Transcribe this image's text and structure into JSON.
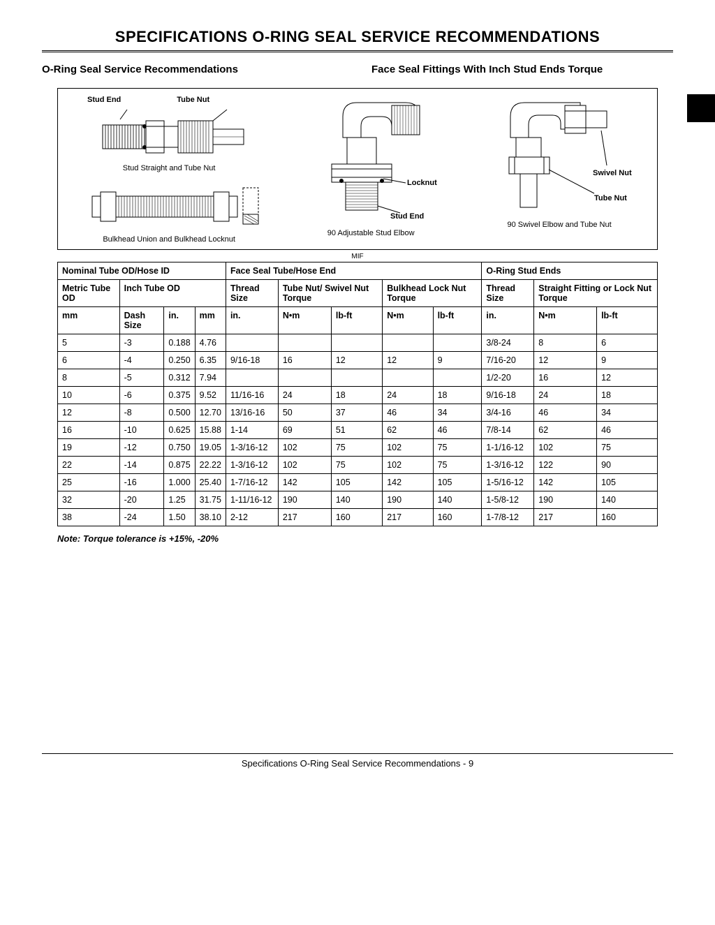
{
  "page": {
    "title": "SPECIFICATIONS   O-RING SEAL SERVICE RECOMMENDATIONS",
    "heading_left": "O-Ring Seal Service Recommendations",
    "heading_right": "Face Seal Fittings With Inch Stud Ends Torque",
    "note": "Note: Torque tolerance is +15%, -20%",
    "footer": "Specifications   O-Ring Seal Service Recommendations  - 9",
    "mif": "MIF"
  },
  "diagram": {
    "stud_end": "Stud End",
    "tube_nut": "Tube Nut",
    "locknut": "Locknut",
    "swivel_nut": "Swivel Nut",
    "caption1": "Stud Straight and Tube Nut",
    "caption2": "Bulkhead Union and Bulkhead Locknut",
    "caption3": "90 Adjustable Stud Elbow",
    "caption4": "90 Swivel Elbow and Tube Nut"
  },
  "table": {
    "group_headers": [
      "Nominal Tube OD/Hose ID",
      "Face Seal Tube/Hose End",
      "O-Ring Stud Ends"
    ],
    "sub_headers": {
      "metric": "Metric Tube OD",
      "inch": "Inch Tube OD",
      "thread": "Thread Size",
      "tubenut": "Tube Nut/ Swivel Nut Torque",
      "bulkhead": "Bulkhead Lock Nut Torque",
      "thread2": "Thread Size",
      "straight": "Straight Fitting or Lock Nut Torque"
    },
    "unit_headers": [
      "mm",
      "Dash Size",
      "in.",
      "mm",
      "in.",
      "N•m",
      "lb-ft",
      "N•m",
      "lb-ft",
      "in.",
      "N•m",
      "lb-ft"
    ],
    "rows": [
      [
        "5",
        "-3",
        "0.188",
        "4.76",
        "",
        "",
        "",
        "",
        "",
        "3/8-24",
        "8",
        "6"
      ],
      [
        "6",
        "-4",
        "0.250",
        "6.35",
        "9/16-18",
        "16",
        "12",
        "12",
        "9",
        "7/16-20",
        "12",
        "9"
      ],
      [
        "8",
        "-5",
        "0.312",
        "7.94",
        "",
        "",
        "",
        "",
        "",
        "1/2-20",
        "16",
        "12"
      ],
      [
        "10",
        "-6",
        "0.375",
        "9.52",
        "11/16-16",
        "24",
        "18",
        "24",
        "18",
        "9/16-18",
        "24",
        "18"
      ],
      [
        "12",
        "-8",
        "0.500",
        "12.70",
        "13/16-16",
        "50",
        "37",
        "46",
        "34",
        "3/4-16",
        "46",
        "34"
      ],
      [
        "16",
        "-10",
        "0.625",
        "15.88",
        "1-14",
        "69",
        "51",
        "62",
        "46",
        "7/8-14",
        "62",
        "46"
      ],
      [
        "19",
        "-12",
        "0.750",
        "19.05",
        "1-3/16-12",
        "102",
        "75",
        "102",
        "75",
        "1-1/16-12",
        "102",
        "75"
      ],
      [
        "22",
        "-14",
        "0.875",
        "22.22",
        "1-3/16-12",
        "102",
        "75",
        "102",
        "75",
        "1-3/16-12",
        "122",
        "90"
      ],
      [
        "25",
        "-16",
        "1.000",
        "25.40",
        "1-7/16-12",
        "142",
        "105",
        "142",
        "105",
        "1-5/16-12",
        "142",
        "105"
      ],
      [
        "32",
        "-20",
        "1.25",
        "31.75",
        "1-11/16-12",
        "190",
        "140",
        "190",
        "140",
        "1-5/8-12",
        "190",
        "140"
      ],
      [
        "38",
        "-24",
        "1.50",
        "38.10",
        "2-12",
        "217",
        "160",
        "217",
        "160",
        "1-7/8-12",
        "217",
        "160"
      ]
    ]
  }
}
